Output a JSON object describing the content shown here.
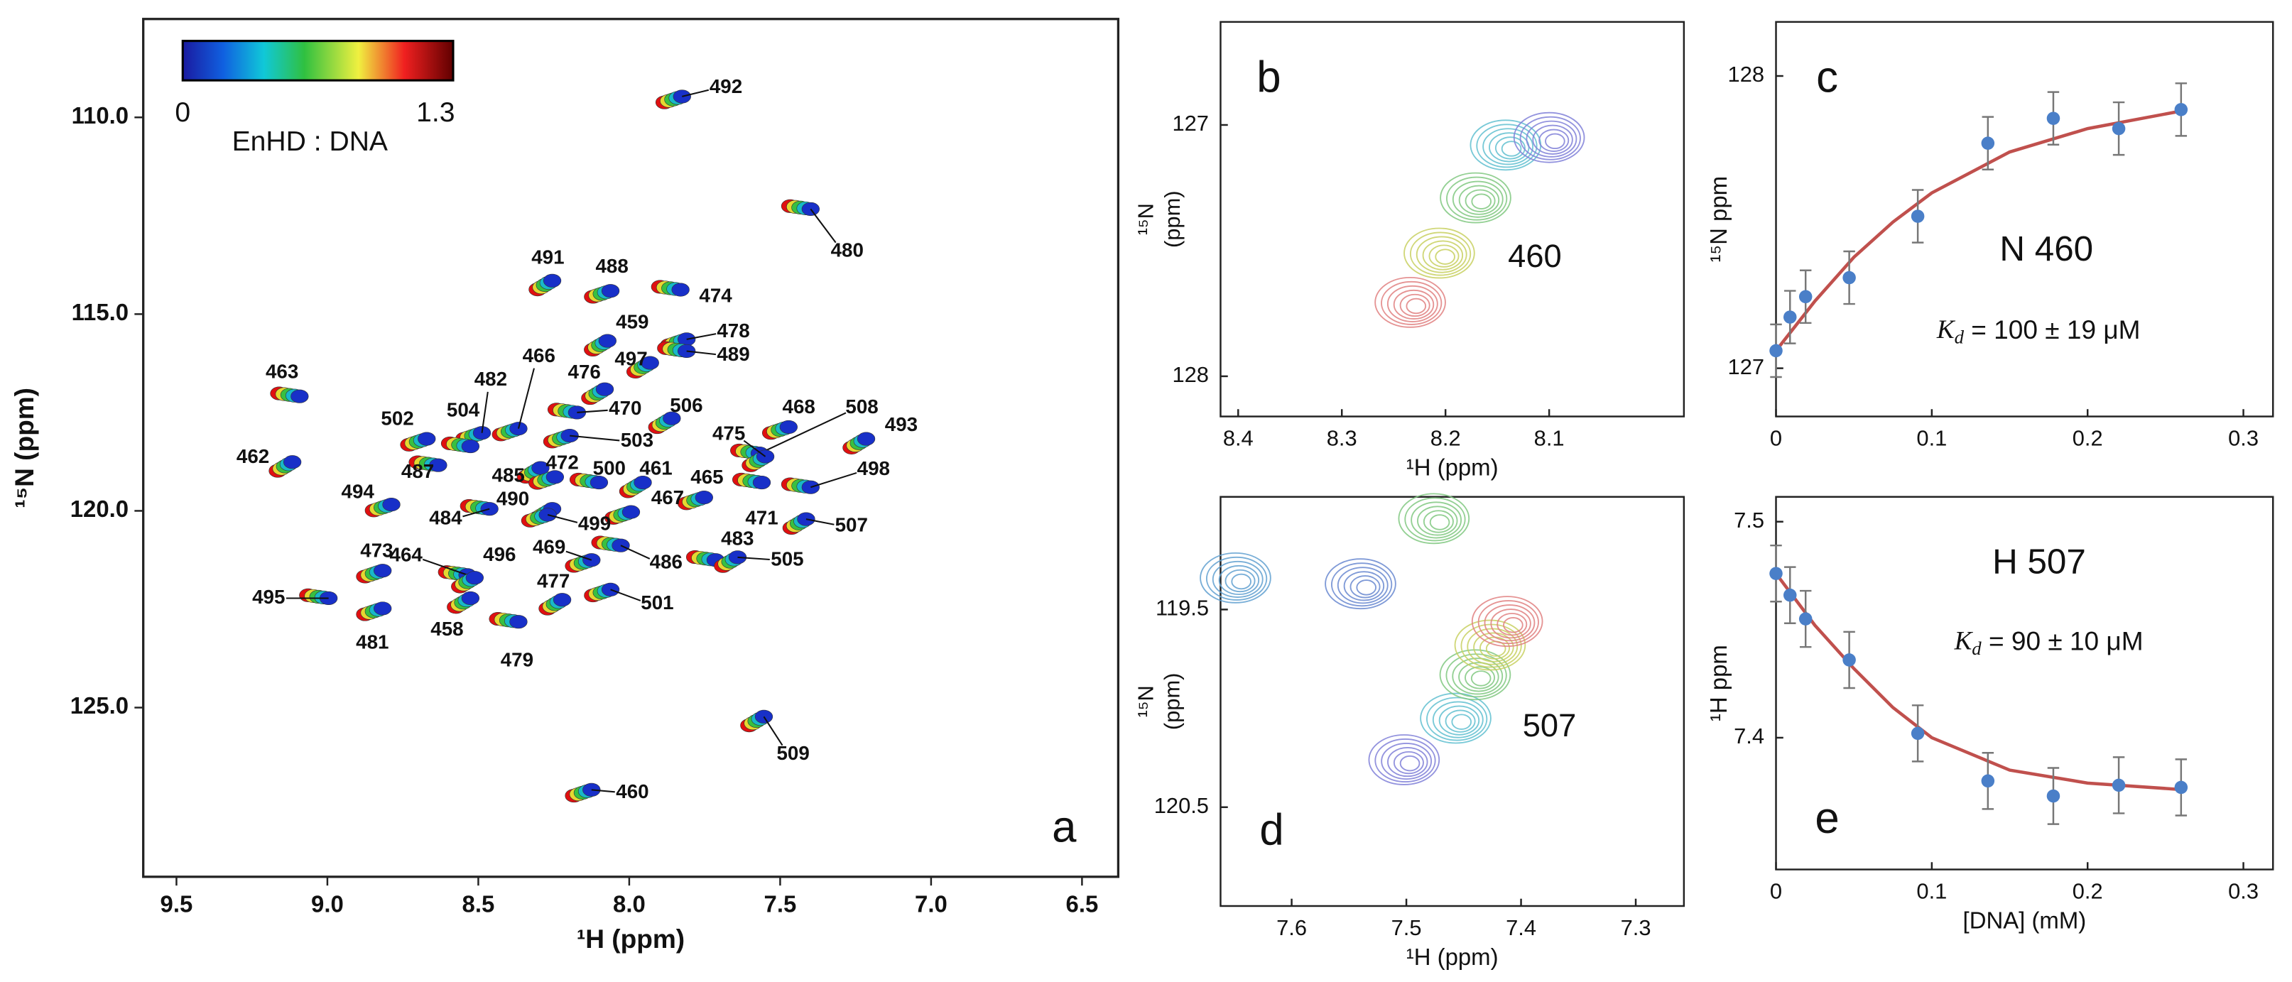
{
  "chart_data": [
    {
      "type": "spectrum",
      "panel": "a",
      "xlabel": "¹H (ppm)",
      "ylabel": "¹⁵N (ppm)",
      "xlim": [
        9.61,
        6.38
      ],
      "ylim": [
        107.5,
        129.3
      ],
      "yaxis_inverted": true,
      "xticks": [
        9.5,
        {
          "value": 9.0,
          "label": "9.0"
        },
        8.5,
        {
          "value": 8.0,
          "label": "8.0"
        },
        7.5,
        {
          "value": 7.0,
          "label": "7.0"
        },
        6.5
      ],
      "yticks": [
        {
          "value": 110,
          "label": "110.0"
        },
        {
          "value": 115,
          "label": "115.0"
        },
        {
          "value": 120,
          "label": "120.0"
        },
        {
          "value": 125,
          "label": "125.0"
        }
      ],
      "colorbar": {
        "range": [
          0,
          1.3
        ],
        "label": "EnHD : DNA"
      },
      "colors": [
        "#e01010",
        "#e6d830",
        "#38c040",
        "#18b8c8",
        "#1830c8"
      ],
      "points": [
        {
          "label": "492",
          "x": 7.825,
          "y": 109.47
        },
        {
          "label": "480",
          "x": 7.399,
          "y": 112.33
        },
        {
          "label": "491",
          "x": 8.255,
          "y": 114.15
        },
        {
          "label": "488",
          "x": 8.062,
          "y": 114.41
        },
        {
          "label": "474",
          "x": 7.83,
          "y": 114.38
        },
        {
          "label": "459",
          "x": 8.072,
          "y": 115.68
        },
        {
          "label": "478",
          "x": 7.81,
          "y": 115.64
        },
        {
          "label": "489",
          "x": 7.81,
          "y": 115.94
        },
        {
          "label": "497",
          "x": 7.931,
          "y": 116.24
        },
        {
          "label": "466",
          "x": 8.367,
          "y": 117.91
        },
        {
          "label": "463",
          "x": 9.092,
          "y": 117.09
        },
        {
          "label": "476",
          "x": 8.081,
          "y": 116.91
        },
        {
          "label": "482",
          "x": 8.488,
          "y": 118.02
        },
        {
          "label": "470",
          "x": 8.173,
          "y": 117.5
        },
        {
          "label": "506",
          "x": 7.859,
          "y": 117.65
        },
        {
          "label": "468",
          "x": 7.472,
          "y": 117.87
        },
        {
          "label": "508",
          "x": 7.568,
          "y": 118.54
        },
        {
          "label": "493",
          "x": 7.215,
          "y": 118.17
        },
        {
          "label": "502",
          "x": 8.671,
          "y": 118.17
        },
        {
          "label": "504",
          "x": 8.526,
          "y": 118.36
        },
        {
          "label": "475",
          "x": 7.549,
          "y": 118.62
        },
        {
          "label": "503",
          "x": 8.197,
          "y": 118.09
        },
        {
          "label": "487",
          "x": 8.633,
          "y": 118.84
        },
        {
          "label": "485",
          "x": 8.294,
          "y": 118.91
        },
        {
          "label": "472",
          "x": 8.246,
          "y": 119.14
        },
        {
          "label": "500",
          "x": 8.1,
          "y": 119.28
        },
        {
          "label": "461",
          "x": 7.955,
          "y": 119.28
        },
        {
          "label": "465",
          "x": 7.752,
          "y": 119.66
        },
        {
          "label": "498",
          "x": 7.399,
          "y": 119.4
        },
        {
          "label": "462",
          "x": 9.116,
          "y": 118.76
        },
        {
          "label": "494",
          "x": 8.788,
          "y": 119.84
        },
        {
          "label": "484",
          "x": 8.463,
          "y": 119.95
        },
        {
          "label": "490",
          "x": 8.255,
          "y": 119.95
        },
        {
          "label": "467",
          "x": 7.994,
          "y": 120.03
        },
        {
          "label": "471",
          "x": 7.561,
          "y": 119.28
        },
        {
          "label": "507",
          "x": 7.414,
          "y": 120.21
        },
        {
          "label": "499",
          "x": 8.27,
          "y": 120.1
        },
        {
          "label": "483",
          "x": 7.714,
          "y": 121.25
        },
        {
          "label": "505",
          "x": 7.641,
          "y": 121.18
        },
        {
          "label": "473",
          "x": 8.817,
          "y": 121.52
        },
        {
          "label": "464",
          "x": 8.536,
          "y": 121.63
        },
        {
          "label": "496",
          "x": 8.512,
          "y": 121.7
        },
        {
          "label": "469",
          "x": 8.125,
          "y": 121.25
        },
        {
          "label": "486",
          "x": 8.028,
          "y": 120.88
        },
        {
          "label": "477",
          "x": 8.222,
          "y": 122.26
        },
        {
          "label": "501",
          "x": 8.062,
          "y": 122.0
        },
        {
          "label": "495",
          "x": 8.996,
          "y": 122.22
        },
        {
          "label": "458",
          "x": 8.526,
          "y": 122.22
        },
        {
          "label": "481",
          "x": 8.817,
          "y": 122.48
        },
        {
          "label": "479",
          "x": 8.367,
          "y": 122.82
        },
        {
          "label": "509",
          "x": 7.554,
          "y": 125.23
        },
        {
          "label": "460",
          "x": 8.125,
          "y": 127.09
        }
      ]
    },
    {
      "type": "contour",
      "panel": "b",
      "label": "460",
      "xlabel": "¹H (ppm)",
      "ylabel": [
        "¹⁵N",
        "(ppm)"
      ],
      "xlim": [
        8.417,
        7.97
      ],
      "ylim": [
        126.59,
        128.16
      ],
      "yaxis_inverted": true,
      "xticks": [
        8.4,
        8.3,
        8.2,
        8.1
      ],
      "yticks": [
        127,
        128
      ],
      "points": [
        {
          "x": 8.234,
          "y": 127.706,
          "color": "#e08080"
        },
        {
          "x": 8.206,
          "y": 127.51,
          "color": "#c8d060"
        },
        {
          "x": 8.171,
          "y": 127.29,
          "color": "#80c880"
        },
        {
          "x": 8.142,
          "y": 127.08,
          "color": "#60c0d0"
        },
        {
          "x": 8.1,
          "y": 127.05,
          "color": "#8080d8"
        }
      ]
    },
    {
      "type": "scatter",
      "panel": "c",
      "label": "N 460",
      "ylabel": "¹⁵N ppm",
      "kd": {
        "symbol": "K",
        "sub": "d",
        "text": "= 100 ± 19 μM"
      },
      "xlim": [
        0,
        0.319
      ],
      "ylim": [
        126.835,
        128.185
      ],
      "xticks": [
        0,
        0.1,
        0.2,
        0.3
      ],
      "yticks": [
        127,
        128
      ],
      "color": "#4a7fc8",
      "fit_color": "#c0504d",
      "x": [
        0,
        0.009,
        0.019,
        0.047,
        0.091,
        0.136,
        0.178,
        0.22,
        0.26
      ],
      "values": [
        127.06,
        127.175,
        127.245,
        127.31,
        127.52,
        127.77,
        127.855,
        127.82,
        127.885
      ],
      "errors": [
        0.09,
        0.09,
        0.09,
        0.09,
        0.09,
        0.09,
        0.09,
        0.09,
        0.09
      ],
      "fit": {
        "x": [
          0,
          0.025,
          0.05,
          0.075,
          0.1,
          0.15,
          0.2,
          0.26
        ],
        "y": [
          127.06,
          127.23,
          127.38,
          127.5,
          127.6,
          127.74,
          127.82,
          127.88
        ]
      }
    },
    {
      "type": "contour",
      "panel": "d",
      "label": "507",
      "xlabel": "¹H (ppm)",
      "ylabel": [
        "¹⁵N",
        "(ppm)"
      ],
      "xlim": [
        7.662,
        7.258
      ],
      "ylim": [
        118.93,
        121.0
      ],
      "yaxis_inverted": true,
      "xticks": [
        7.6,
        7.5,
        7.4,
        7.3
      ],
      "yticks": [
        119.5,
        120.5
      ],
      "points": [
        {
          "x": 7.649,
          "y": 119.34,
          "color": "#60a0d0"
        },
        {
          "x": 7.54,
          "y": 119.37,
          "color": "#6888d0"
        },
        {
          "x": 7.476,
          "y": 119.04,
          "color": "#80c880"
        },
        {
          "x": 7.502,
          "y": 120.26,
          "color": "#8080d8"
        },
        {
          "x": 7.457,
          "y": 120.05,
          "color": "#60c0d0"
        },
        {
          "x": 7.44,
          "y": 119.83,
          "color": "#80c880"
        },
        {
          "x": 7.427,
          "y": 119.68,
          "color": "#c8d060"
        },
        {
          "x": 7.412,
          "y": 119.56,
          "color": "#e08080"
        }
      ]
    },
    {
      "type": "scatter",
      "panel": "e",
      "label": "H 507",
      "ylabel": "¹H ppm",
      "xlabel": "[DNA] (mM)",
      "kd": {
        "symbol": "K",
        "sub": "d",
        "text": "= 90 ± 10 μM"
      },
      "xlim": [
        0,
        0.319
      ],
      "ylim": [
        7.339,
        7.5115
      ],
      "xticks": [
        0,
        0.1,
        0.2,
        0.3
      ],
      "yticks": [
        7.4,
        7.5
      ],
      "color": "#4a7fc8",
      "fit_color": "#c0504d",
      "x": [
        0,
        0.009,
        0.019,
        0.047,
        0.091,
        0.136,
        0.178,
        0.22,
        0.26
      ],
      "values": [
        7.476,
        7.466,
        7.455,
        7.436,
        7.402,
        7.38,
        7.373,
        7.378,
        7.377
      ],
      "errors": [
        0.013,
        0.013,
        0.013,
        0.013,
        0.013,
        0.013,
        0.013,
        0.013,
        0.013
      ],
      "fit": {
        "x": [
          0,
          0.025,
          0.05,
          0.075,
          0.1,
          0.15,
          0.2,
          0.26
        ],
        "y": [
          7.476,
          7.452,
          7.432,
          7.414,
          7.4,
          7.385,
          7.379,
          7.376
        ]
      }
    }
  ]
}
